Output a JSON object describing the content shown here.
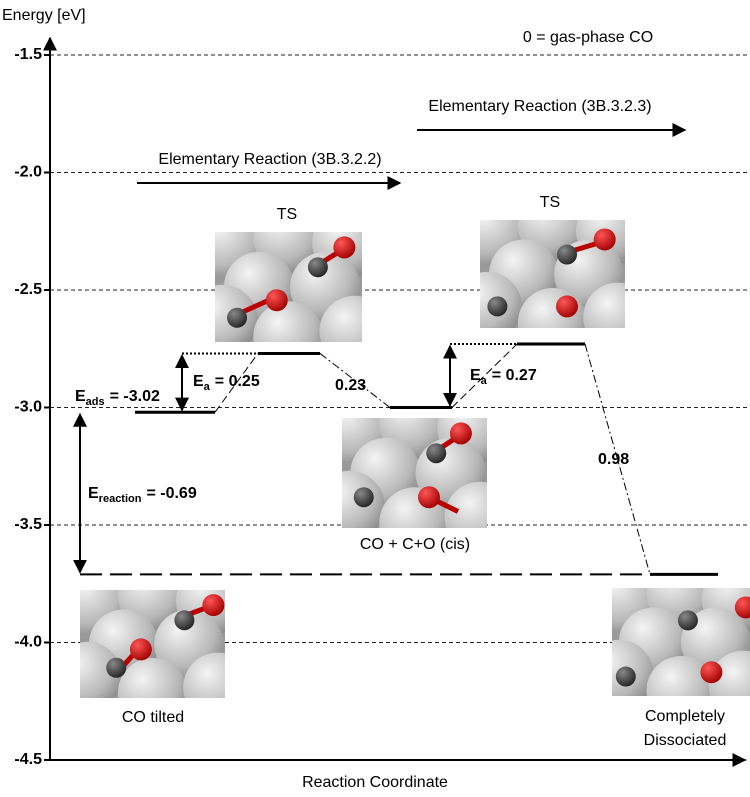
{
  "chart_data": {
    "type": "energy-diagram",
    "y_label": "Energy [eV]",
    "x_label": "Reaction Coordinate",
    "note": "0 = gas-phase CO",
    "ylim": [
      -4.5,
      -1.5
    ],
    "yticks": [
      -4.5,
      {
        "value": -4,
        "label": "-4.0"
      },
      -3.5,
      {
        "value": -3,
        "label": "-3.0"
      },
      -2.5,
      {
        "value": -2,
        "label": "-2.0"
      },
      -1.5
    ],
    "grid": true,
    "color": "#000000",
    "states": [
      "CO tilted",
      "TS",
      "CO + C+O (cis)",
      "TS",
      "Completely Dissociated"
    ],
    "values": [
      -3.02,
      -2.77,
      -3.0,
      -2.73,
      -3.71
    ],
    "reactions": [
      "Elementary Reaction (3B.3.2.2)",
      "Elementary Reaction (3B.3.2.3)"
    ],
    "annotations": [
      {
        "symbol": "E",
        "subscript": "ads",
        "text": "= -3.02"
      },
      {
        "symbol": "E",
        "subscript": "a",
        "text": "= 0.25"
      },
      {
        "text": "0.23"
      },
      {
        "symbol": "E",
        "subscript": "a",
        "text": "= 0.27"
      },
      {
        "text": "0.98"
      },
      {
        "symbol": "E",
        "subscript": "reaction",
        "text": "= -0.69"
      }
    ]
  }
}
